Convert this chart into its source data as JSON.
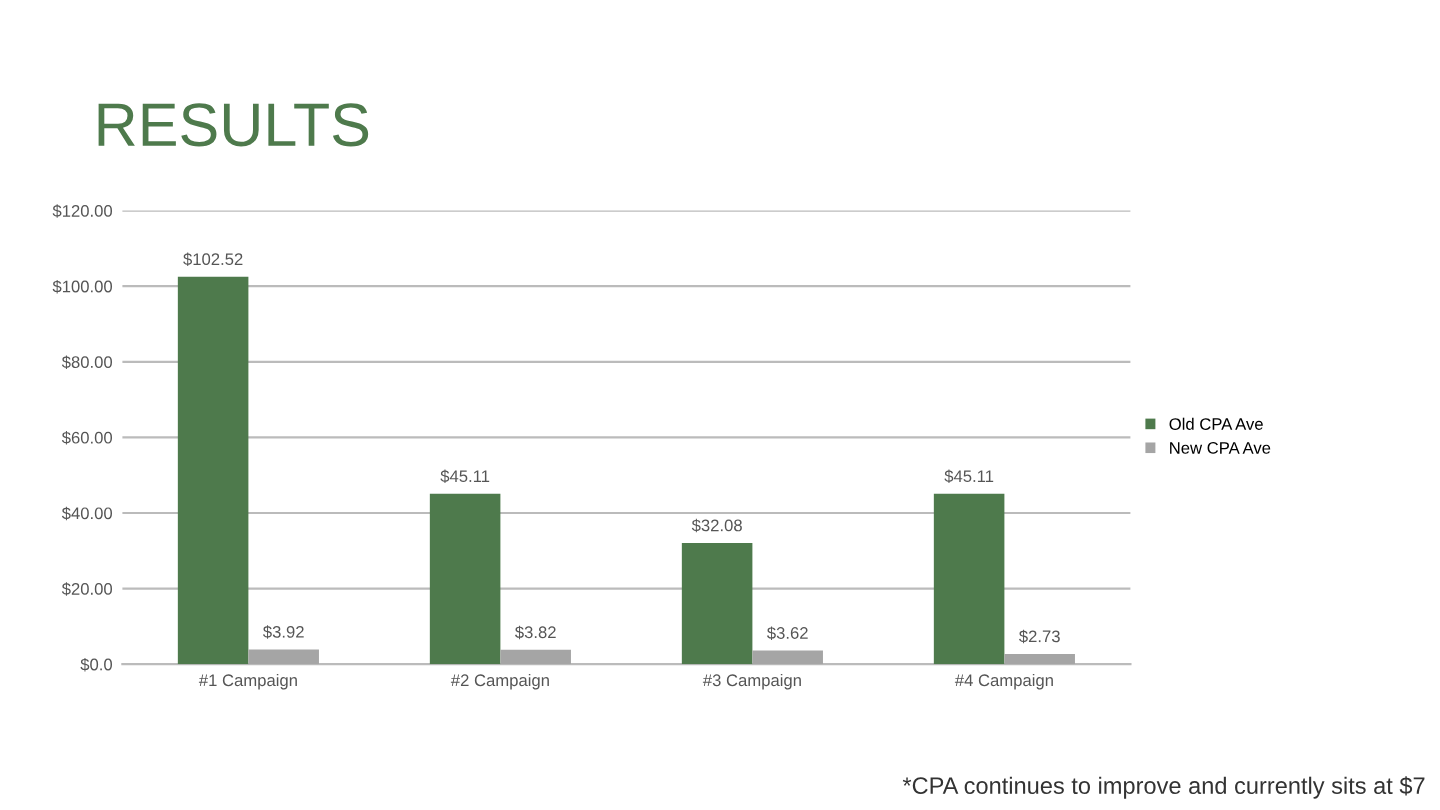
{
  "chart_data": {
    "type": "bar",
    "title": "RESULTS",
    "categories": [
      "#1 Campaign",
      "#2 Campaign",
      "#3 Campaign",
      "#4 Campaign"
    ],
    "series": [
      {
        "name": "Old CPA Ave",
        "color": "#4e7a4c",
        "values": [
          102.52,
          45.11,
          32.08,
          45.11
        ],
        "value_labels": [
          "$102.52",
          "$45.11",
          "$32.08",
          "$45.11"
        ]
      },
      {
        "name": "New CPA Ave",
        "color": "#a5a5a5",
        "values": [
          3.92,
          3.82,
          3.62,
          2.73
        ],
        "value_labels": [
          "$3.92",
          "$3.82",
          "$3.62",
          "$2.73"
        ]
      }
    ],
    "ylim": [
      0,
      120
    ],
    "yticks": [
      {
        "value": 0,
        "label": "$0.0"
      },
      {
        "value": 20,
        "label": "$20.00"
      },
      {
        "value": 40,
        "label": "$40.00"
      },
      {
        "value": 60,
        "label": "$60.00"
      },
      {
        "value": 80,
        "label": "$80.00"
      },
      {
        "value": 100,
        "label": "$100.00"
      },
      {
        "value": 120,
        "label": "$120.00"
      }
    ],
    "grid": "y",
    "legend": "right",
    "annotations": [
      "*CPA continues to improve and currently sits at $7"
    ]
  }
}
